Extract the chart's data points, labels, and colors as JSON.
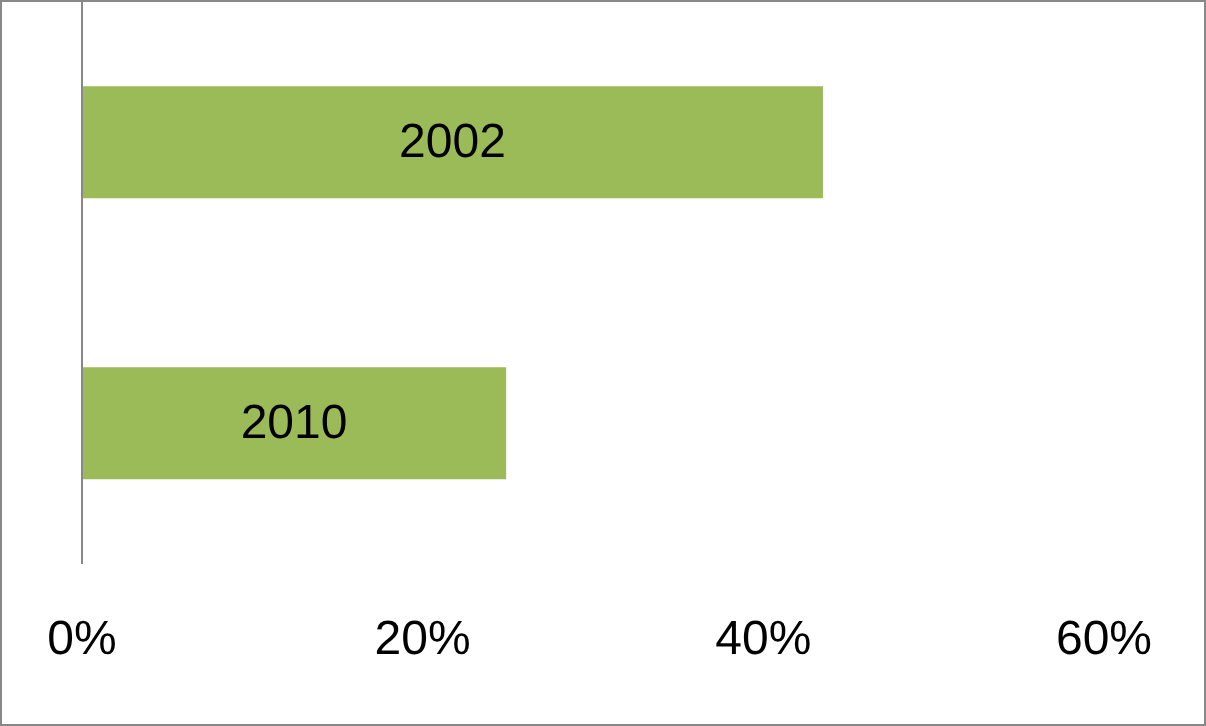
{
  "chart_data": {
    "type": "bar",
    "orientation": "horizontal",
    "categories": [
      "2002",
      "2010"
    ],
    "values": [
      43.5,
      24.9
    ],
    "color": "#9bbb59",
    "xlim": [
      0,
      60
    ],
    "xticks": [
      {
        "value": 0,
        "label": "0%"
      },
      {
        "value": 20,
        "label": "20%"
      },
      {
        "value": 40,
        "label": "40%"
      },
      {
        "value": 60,
        "label": "60%"
      }
    ],
    "grid": false,
    "legend": false
  }
}
